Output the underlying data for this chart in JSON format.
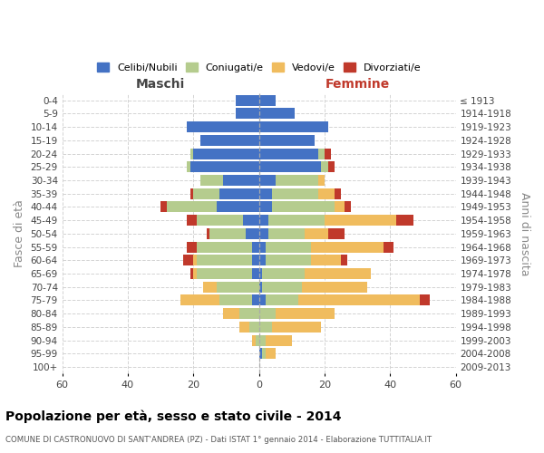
{
  "age_groups": [
    "0-4",
    "5-9",
    "10-14",
    "15-19",
    "20-24",
    "25-29",
    "30-34",
    "35-39",
    "40-44",
    "45-49",
    "50-54",
    "55-59",
    "60-64",
    "65-69",
    "70-74",
    "75-79",
    "80-84",
    "85-89",
    "90-94",
    "95-99",
    "100+"
  ],
  "birth_years": [
    "2009-2013",
    "2004-2008",
    "1999-2003",
    "1994-1998",
    "1989-1993",
    "1984-1988",
    "1979-1983",
    "1974-1978",
    "1969-1973",
    "1964-1968",
    "1959-1963",
    "1954-1958",
    "1949-1953",
    "1944-1948",
    "1939-1943",
    "1934-1938",
    "1929-1933",
    "1924-1928",
    "1919-1923",
    "1914-1918",
    "≤ 1913"
  ],
  "maschi": {
    "celibi": [
      7,
      7,
      22,
      18,
      20,
      21,
      11,
      12,
      13,
      5,
      4,
      2,
      2,
      2,
      0,
      2,
      0,
      0,
      0,
      0,
      0
    ],
    "coniugati": [
      0,
      0,
      0,
      0,
      1,
      1,
      7,
      8,
      15,
      14,
      11,
      17,
      17,
      17,
      13,
      10,
      6,
      3,
      1,
      0,
      0
    ],
    "vedovi": [
      0,
      0,
      0,
      0,
      0,
      0,
      0,
      0,
      0,
      0,
      0,
      0,
      1,
      1,
      4,
      12,
      5,
      3,
      1,
      0,
      0
    ],
    "divorziati": [
      0,
      0,
      0,
      0,
      0,
      0,
      0,
      1,
      2,
      3,
      1,
      3,
      3,
      1,
      0,
      0,
      0,
      0,
      0,
      0,
      0
    ]
  },
  "femmine": {
    "nubili": [
      5,
      11,
      21,
      17,
      18,
      19,
      5,
      4,
      4,
      3,
      3,
      2,
      2,
      1,
      1,
      2,
      0,
      0,
      0,
      1,
      0
    ],
    "coniugate": [
      0,
      0,
      0,
      0,
      2,
      2,
      13,
      14,
      19,
      17,
      11,
      14,
      14,
      13,
      12,
      10,
      5,
      4,
      2,
      1,
      0
    ],
    "vedove": [
      0,
      0,
      0,
      0,
      0,
      0,
      2,
      5,
      3,
      22,
      7,
      22,
      9,
      20,
      20,
      37,
      18,
      15,
      8,
      3,
      0
    ],
    "divorziate": [
      0,
      0,
      0,
      0,
      2,
      2,
      0,
      2,
      2,
      5,
      5,
      3,
      2,
      0,
      0,
      3,
      0,
      0,
      0,
      0,
      0
    ]
  },
  "colors": {
    "celibi": "#4472c4",
    "coniugati": "#b5cc8e",
    "vedovi": "#f0bc5e",
    "divorziati": "#c0392b"
  },
  "xlim": 60,
  "title": "Popolazione per età, sesso e stato civile - 2014",
  "subtitle": "COMUNE DI CASTRONUOVO DI SANT'ANDREA (PZ) - Dati ISTAT 1° gennaio 2014 - Elaborazione TUTTITALIA.IT",
  "ylabel_left": "Fasce di età",
  "ylabel_right": "Anni di nascita",
  "xlabel_left": "Maschi",
  "xlabel_right": "Femmine",
  "legend_labels": [
    "Celibi/Nubili",
    "Coniugati/e",
    "Vedovi/e",
    "Divorziati/e"
  ]
}
